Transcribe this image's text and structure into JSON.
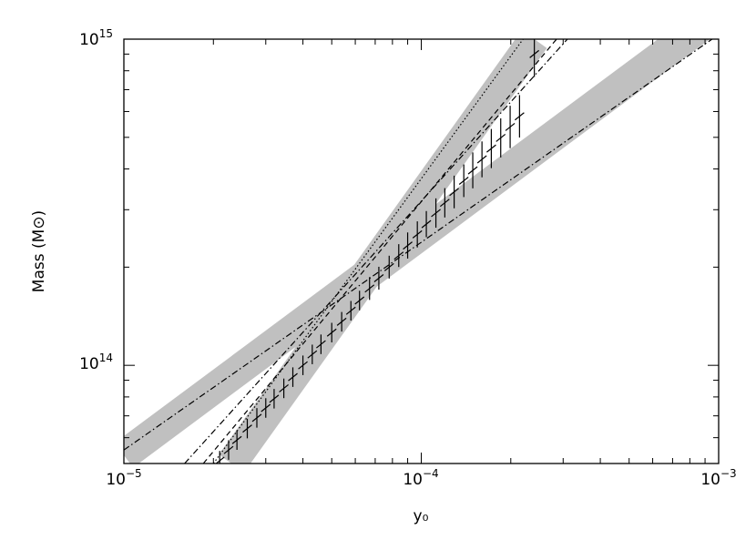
{
  "chart_data": {
    "type": "line",
    "title": "",
    "xlabel": "y₀",
    "ylabel": "Mass (M⊙)",
    "xscale": "log",
    "yscale": "log",
    "xlim": [
      1e-05,
      0.001
    ],
    "ylim": [
      50000000000000.0,
      1000000000000000.0
    ],
    "x_ticks": [
      {
        "base": "10",
        "exp": "−5",
        "value": 1e-05
      },
      {
        "base": "10",
        "exp": "−4",
        "value": 0.0001
      },
      {
        "base": "10",
        "exp": "−3",
        "value": 0.001
      }
    ],
    "y_ticks": [
      {
        "base": "10",
        "exp": "14",
        "value": 100000000000000.0
      },
      {
        "base": "10",
        "exp": "15",
        "value": 1000000000000000.0
      }
    ],
    "grid": false,
    "legend": "none",
    "colors": {
      "band": "#c0c0c0",
      "line": "#000000"
    },
    "bands": [
      {
        "x": [
          1e-05,
          0.001
        ],
        "y": [
          53000000000000.0,
          1200000000000000.0
        ]
      },
      {
        "x": [
          2.3e-05,
          0.00024
        ],
        "y": [
          50000000000000.0,
          1000000000000000.0
        ]
      }
    ],
    "series": [
      {
        "style": "dash-dot",
        "x": [
          1e-05,
          0.00095
        ],
        "y": [
          55000000000000.0,
          1000000000000000.0
        ]
      },
      {
        "style": "dotted",
        "x": [
          2e-05,
          0.00022
        ],
        "y": [
          50000000000000.0,
          1000000000000000.0
        ]
      },
      {
        "style": "dashed",
        "x": [
          1.85e-05,
          0.000285
        ],
        "y": [
          50000000000000.0,
          1000000000000000.0
        ]
      },
      {
        "style": "dash-dot",
        "x": [
          1.6e-05,
          0.00031
        ],
        "y": [
          50000000000000.0,
          1000000000000000.0
        ]
      },
      {
        "style": "errorbar-points",
        "x": [
          2.1e-05,
          2.25e-05,
          2.4e-05,
          2.6e-05,
          2.8e-05,
          3e-05,
          3.2e-05,
          3.45e-05,
          3.7e-05,
          4e-05,
          4.3e-05,
          4.6e-05,
          5e-05,
          5.4e-05,
          5.8e-05,
          6.2e-05,
          6.7e-05,
          7.2e-05,
          7.8e-05,
          8.4e-05,
          9e-05,
          9.7e-05,
          0.000104,
          0.000112,
          0.00012,
          0.000129,
          0.000139,
          0.000149,
          0.00016,
          0.000172,
          0.000185,
          0.000199,
          0.000214,
          0.00024
        ],
        "y": [
          51000000000000.0,
          55000000000000.0,
          59000000000000.0,
          64000000000000.0,
          69000000000000.0,
          74000000000000.0,
          79000000000000.0,
          85000000000000.0,
          92000000000000.0,
          100000000000000.0,
          108000000000000.0,
          116000000000000.0,
          126000000000000.0,
          136000000000000.0,
          147000000000000.0,
          158000000000000.0,
          172000000000000.0,
          185000000000000.0,
          200000000000000.0,
          217000000000000.0,
          233000000000000.0,
          252000000000000.0,
          271000000000000.0,
          293000000000000.0,
          315000000000000.0,
          340000000000000.0,
          368000000000000.0,
          396000000000000.0,
          428000000000000.0,
          462000000000000.0,
          498000000000000.0,
          538000000000000.0,
          580000000000000.0,
          900000000000000.0
        ],
        "yerr": [
          0.03,
          0.03,
          0.03,
          0.03,
          0.03,
          0.03,
          0.03,
          0.03,
          0.03,
          0.03,
          0.03,
          0.03,
          0.03,
          0.03,
          0.03,
          0.03,
          0.035,
          0.035,
          0.035,
          0.035,
          0.04,
          0.04,
          0.04,
          0.045,
          0.045,
          0.05,
          0.05,
          0.055,
          0.055,
          0.06,
          0.06,
          0.065,
          0.065,
          0.07
        ]
      }
    ]
  }
}
